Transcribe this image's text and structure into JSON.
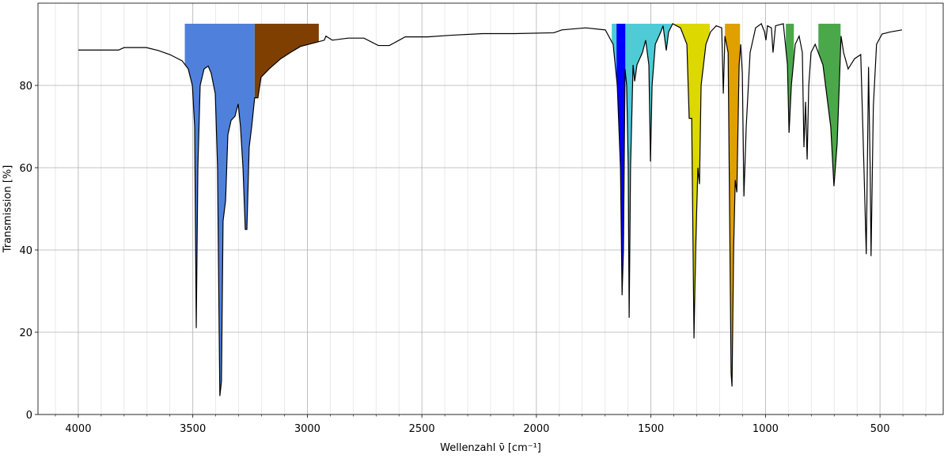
{
  "chart_data": {
    "type": "line",
    "xlabel": "Wellenzahl ν̄ [cm⁻¹]",
    "ylabel": "Transmission [%]",
    "xlim": [
      4176,
      224
    ],
    "ylim": [
      0,
      100
    ],
    "xticks": [
      4000,
      3500,
      3000,
      2500,
      2000,
      1500,
      1000,
      500
    ],
    "xminorticks": [
      4100,
      3900,
      3800,
      3700,
      3600,
      3400,
      3300,
      3200,
      3100,
      2900,
      2800,
      2700,
      2600,
      2400,
      2300,
      2200,
      2100,
      1900,
      1800,
      1700,
      1600,
      1400,
      1300,
      1200,
      1100,
      900,
      800,
      700,
      600,
      400,
      300
    ],
    "yticks": [
      0,
      20,
      40,
      60,
      80
    ],
    "grid": true,
    "fill_top": 95,
    "regions": [
      {
        "from": 3535,
        "to": 3230,
        "color": "#4f81dc"
      },
      {
        "from": 3230,
        "to": 2950,
        "color": "#7f3f00"
      },
      {
        "from": 1671,
        "to": 1405,
        "color": "#4ecbd6"
      },
      {
        "from": 1650,
        "to": 1612,
        "color": "#0000ff"
      },
      {
        "from": 1395,
        "to": 1243,
        "color": "#dcd800"
      },
      {
        "from": 1177,
        "to": 1111,
        "color": "#e0a000"
      },
      {
        "from": 911,
        "to": 876,
        "color": "#4aa84a"
      },
      {
        "from": 769,
        "to": 672,
        "color": "#4aa84a"
      }
    ],
    "series": [
      {
        "color": "#000000",
        "x": [
          4000,
          3824,
          3800,
          3703,
          3651,
          3600,
          3547,
          3520,
          3502,
          3492,
          3485,
          3478,
          3468,
          3451,
          3433,
          3420,
          3402,
          3392,
          3385,
          3382,
          3375,
          3368,
          3357,
          3347,
          3333,
          3316,
          3302,
          3292,
          3281,
          3271,
          3264,
          3254,
          3243,
          3230,
          3216,
          3202,
          3167,
          3116,
          3074,
          3029,
          2960,
          2926,
          2919,
          2891,
          2822,
          2753,
          2690,
          2642,
          2573,
          2476,
          2373,
          2234,
          2096,
          1924,
          1889,
          1785,
          1699,
          1665,
          1647,
          1633,
          1626,
          1620,
          1613,
          1606,
          1599,
          1595,
          1589,
          1578,
          1571,
          1561,
          1537,
          1523,
          1509,
          1502,
          1495,
          1481,
          1457,
          1447,
          1433,
          1423,
          1405,
          1371,
          1343,
          1333,
          1322,
          1312,
          1305,
          1295,
          1288,
          1281,
          1260,
          1240,
          1215,
          1191,
          1184,
          1177,
          1163,
          1150,
          1146,
          1139,
          1132,
          1125,
          1115,
          1108,
          1101,
          1094,
          1084,
          1067,
          1043,
          1018,
          1004,
          998,
          991,
          974,
          967,
          956,
          922,
          904,
          897,
          887,
          870,
          853,
          839,
          832,
          825,
          818,
          811,
          801,
          783,
          749,
          715,
          701,
          687,
          670,
          659,
          639,
          611,
          584,
          570,
          560,
          553,
          550,
          543,
          539,
          529,
          515,
          491,
          456,
          404
        ],
        "values": [
          88.6,
          88.6,
          89.2,
          89.2,
          88.5,
          87.5,
          86,
          84,
          80,
          70,
          21,
          60,
          80,
          84,
          84.7,
          83,
          78,
          60,
          20,
          4.5,
          8,
          47,
          52,
          68,
          71.5,
          72.5,
          75.5,
          70,
          60,
          45,
          45,
          65,
          70,
          77,
          77,
          82,
          84,
          86.5,
          88,
          89.5,
          90.5,
          91,
          92,
          91,
          91.5,
          91.5,
          89.7,
          89.7,
          91.8,
          91.8,
          92.2,
          92.6,
          92.6,
          92.8,
          93.5,
          94,
          93.5,
          90,
          80,
          60,
          29,
          40,
          84,
          80,
          60,
          23.5,
          60,
          85,
          81,
          85,
          88,
          91,
          85,
          61.5,
          80,
          90,
          93,
          94.5,
          88.5,
          93,
          95,
          94,
          90,
          72,
          72,
          18.5,
          40,
          60,
          56,
          80,
          90,
          93,
          94.5,
          94,
          78,
          92,
          88,
          10,
          6.8,
          40,
          57,
          54,
          85,
          90,
          83,
          53,
          70,
          88,
          94,
          95,
          93,
          91,
          94.5,
          94,
          88,
          94.5,
          95,
          85,
          68.5,
          80,
          90,
          92,
          88,
          65,
          76,
          62,
          80,
          88,
          90,
          85,
          70,
          55.5,
          66,
          92,
          88,
          84,
          86.5,
          87.5,
          60,
          39,
          70,
          84.5,
          60,
          38.5,
          75,
          90,
          92.5,
          93,
          93.5
        ]
      }
    ]
  }
}
